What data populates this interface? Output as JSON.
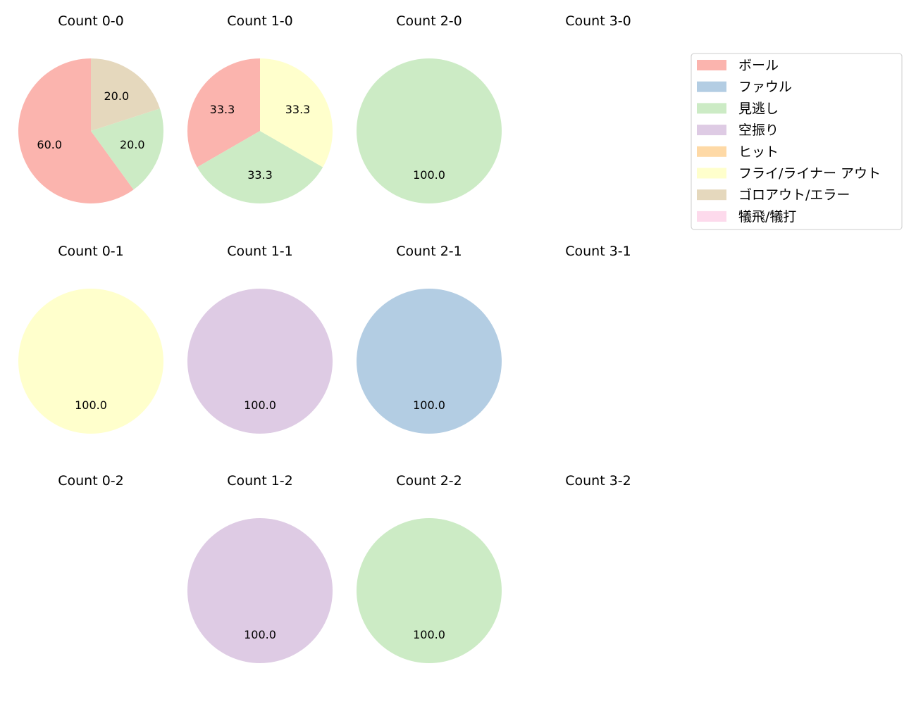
{
  "chart_data": {
    "type": "pie",
    "legend": {
      "placement": "top-right",
      "entries": [
        {
          "name": "ボール",
          "color": "#fbb4ae"
        },
        {
          "name": "ファウル",
          "color": "#b3cde3"
        },
        {
          "name": "見逃し",
          "color": "#ccebc5"
        },
        {
          "name": "空振り",
          "color": "#decbe4"
        },
        {
          "name": "ヒット",
          "color": "#fed9a6"
        },
        {
          "name": "フライ/ライナー アウト",
          "color": "#ffffcc"
        },
        {
          "name": "ゴロアウト/エラー",
          "color": "#e5d8bd"
        },
        {
          "name": "犠飛/犠打",
          "color": "#fddaec"
        }
      ]
    },
    "charts": [
      {
        "title": "Count 0-0",
        "slices": [
          {
            "category": "ボール",
            "value": 60.0,
            "label": "60.0"
          },
          {
            "category": "見逃し",
            "value": 20.0,
            "label": "20.0"
          },
          {
            "category": "ゴロアウト/エラー",
            "value": 20.0,
            "label": "20.0"
          }
        ]
      },
      {
        "title": "Count 1-0",
        "slices": [
          {
            "category": "ボール",
            "value": 33.3,
            "label": "33.3"
          },
          {
            "category": "見逃し",
            "value": 33.3,
            "label": "33.3"
          },
          {
            "category": "フライ/ライナー アウト",
            "value": 33.3,
            "label": "33.3"
          }
        ]
      },
      {
        "title": "Count 2-0",
        "slices": [
          {
            "category": "見逃し",
            "value": 100.0,
            "label": "100.0"
          }
        ]
      },
      {
        "title": "Count 3-0",
        "slices": []
      },
      {
        "title": "Count 0-1",
        "slices": [
          {
            "category": "フライ/ライナー アウト",
            "value": 100.0,
            "label": "100.0"
          }
        ]
      },
      {
        "title": "Count 1-1",
        "slices": [
          {
            "category": "空振り",
            "value": 100.0,
            "label": "100.0"
          }
        ]
      },
      {
        "title": "Count 2-1",
        "slices": [
          {
            "category": "ファウル",
            "value": 100.0,
            "label": "100.0"
          }
        ]
      },
      {
        "title": "Count 3-1",
        "slices": []
      },
      {
        "title": "Count 0-2",
        "slices": []
      },
      {
        "title": "Count 1-2",
        "slices": [
          {
            "category": "空振り",
            "value": 100.0,
            "label": "100.0"
          }
        ]
      },
      {
        "title": "Count 2-2",
        "slices": [
          {
            "category": "見逃し",
            "value": 100.0,
            "label": "100.0"
          }
        ]
      },
      {
        "title": "Count 3-2",
        "slices": []
      }
    ]
  }
}
